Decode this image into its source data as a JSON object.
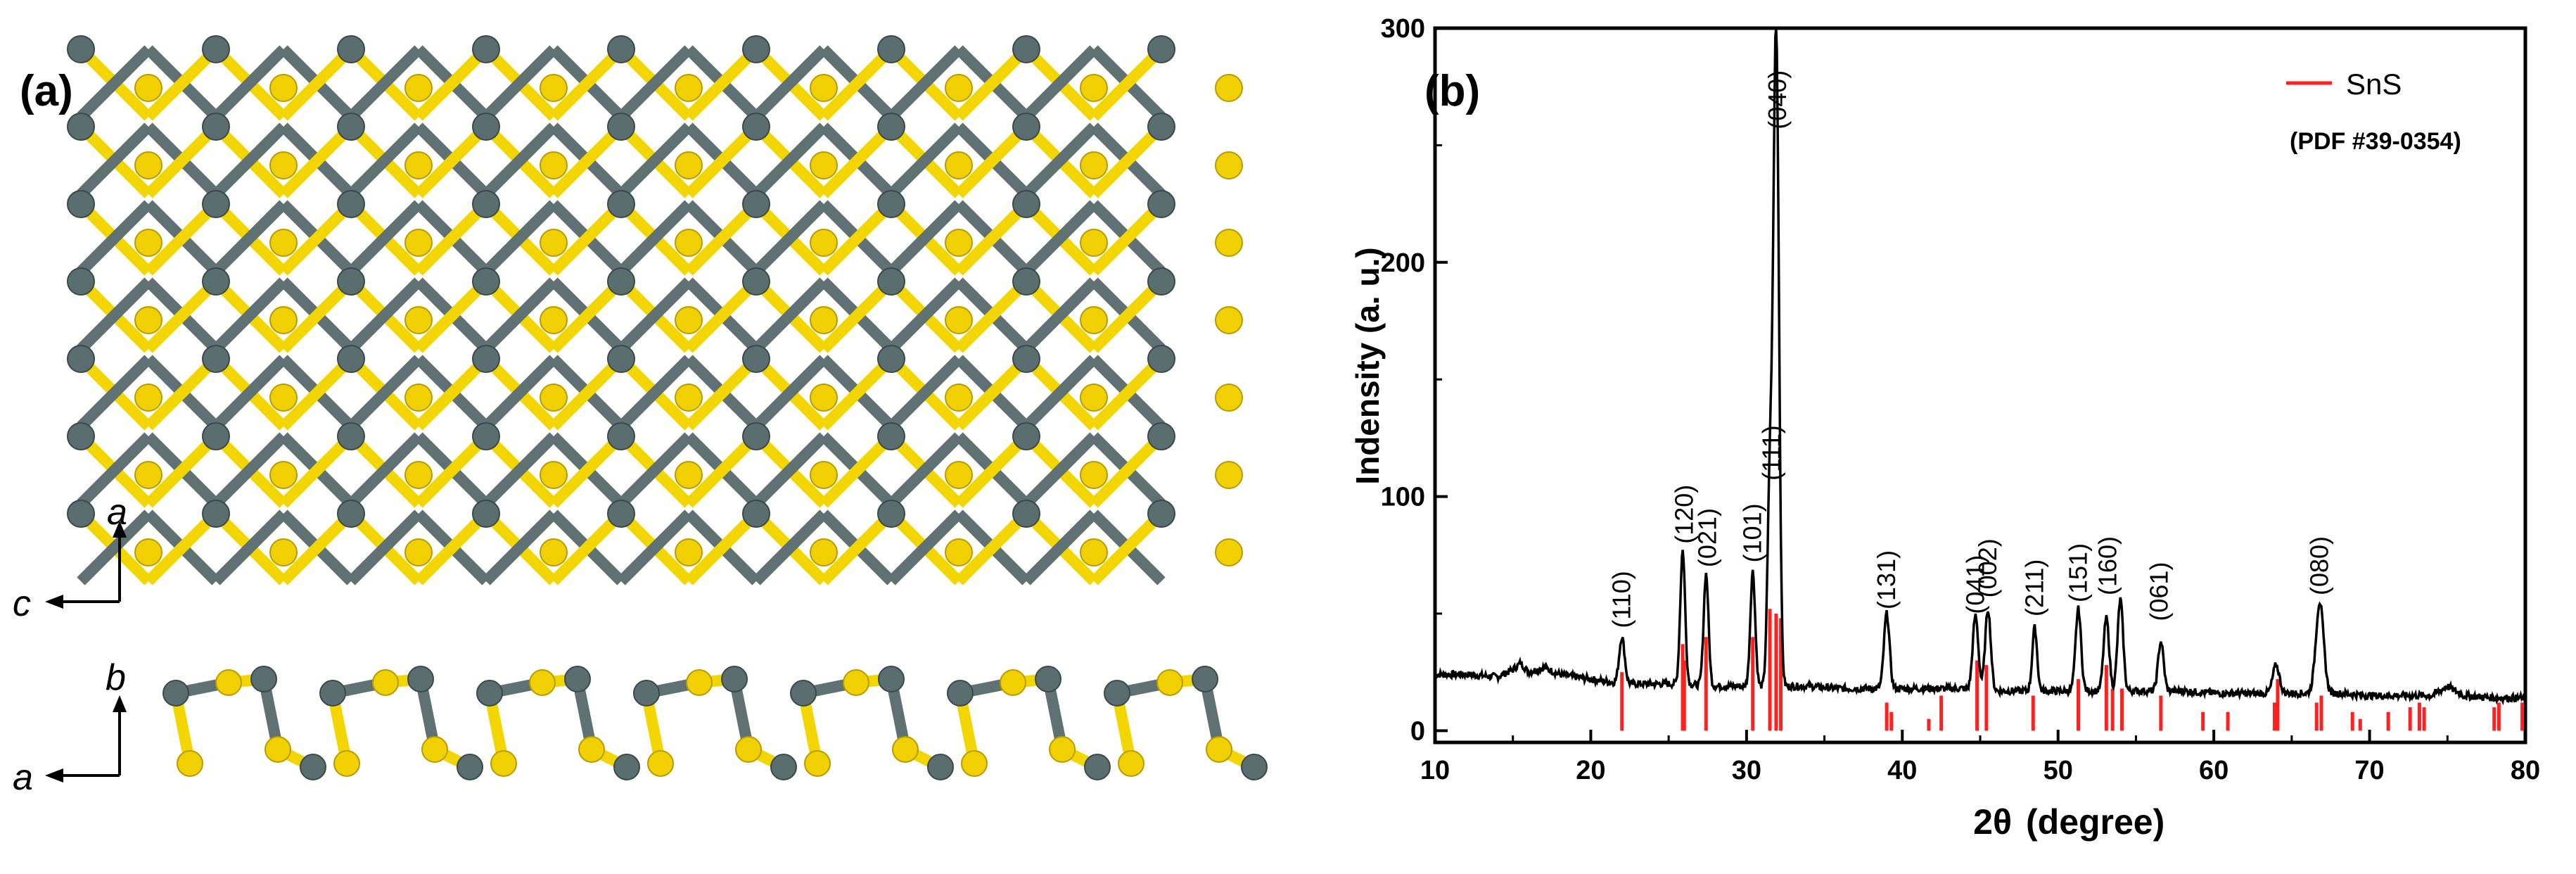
{
  "panel_a": {
    "label": "(a)",
    "top_view_axes": {
      "vertical": "a",
      "horizontal": "c"
    },
    "side_view_axes": {
      "vertical": "b",
      "horizontal": "a"
    },
    "colors": {
      "sn": "#5a6e70",
      "s": "#f0d000",
      "bond_sn": "#5f7173",
      "bond_s": "#f3d500"
    }
  },
  "panel_b": {
    "label": "(b)"
  },
  "chart_data": {
    "type": "line",
    "xlabel_symbol": "2θ",
    "xlabel_unit": "(degree)",
    "ylabel": "Indensity (a. u.)",
    "xlim": [
      10,
      80
    ],
    "ylim": [
      -5,
      300
    ],
    "xticks": [
      10,
      20,
      30,
      40,
      50,
      60,
      70,
      80
    ],
    "yticks": [
      0,
      100,
      200,
      300
    ],
    "legend": {
      "label": "SnS",
      "sublabel": "(PDF #39-0354)",
      "placement": "top-right"
    },
    "colors": {
      "pattern": "#000000",
      "reference": "#ff2020"
    },
    "peak_labels": [
      {
        "text": "(110)",
        "x": 22.0,
        "y": 42
      },
      {
        "text": "(120)",
        "x": 26.0,
        "y": 78
      },
      {
        "text": "(021)",
        "x": 27.5,
        "y": 68
      },
      {
        "text": "(101)",
        "x": 30.4,
        "y": 70
      },
      {
        "text": "(111)",
        "x": 31.6,
        "y": 105
      },
      {
        "text": "(040)",
        "x": 32.0,
        "y": 255
      },
      {
        "text": "(131)",
        "x": 39.0,
        "y": 50
      },
      {
        "text": "(041)",
        "x": 44.7,
        "y": 48
      },
      {
        "text": "(002)",
        "x": 45.5,
        "y": 55
      },
      {
        "text": "(211)",
        "x": 48.5,
        "y": 47
      },
      {
        "text": "(151)",
        "x": 51.3,
        "y": 53
      },
      {
        "text": "(160)",
        "x": 53.2,
        "y": 56
      },
      {
        "text": "(061)",
        "x": 56.5,
        "y": 45
      },
      {
        "text": "(080)",
        "x": 66.8,
        "y": 56
      }
    ],
    "series": [
      {
        "kind": "measured",
        "baseline": [
          [
            10,
            24
          ],
          [
            12,
            24
          ],
          [
            14,
            23
          ],
          [
            15,
            26
          ],
          [
            15.5,
            29
          ],
          [
            16,
            25
          ],
          [
            17,
            27
          ],
          [
            18,
            24
          ],
          [
            20,
            22
          ],
          [
            22,
            20
          ],
          [
            24,
            20
          ],
          [
            26,
            20
          ],
          [
            28,
            19
          ],
          [
            30,
            19
          ],
          [
            32,
            19
          ],
          [
            34,
            19
          ],
          [
            36,
            18
          ],
          [
            38,
            18
          ],
          [
            40,
            18
          ],
          [
            42,
            18
          ],
          [
            44,
            18
          ],
          [
            46,
            17
          ],
          [
            48,
            17
          ],
          [
            50,
            17
          ],
          [
            52,
            17
          ],
          [
            54,
            17
          ],
          [
            56,
            17
          ],
          [
            58,
            17
          ],
          [
            60,
            16
          ],
          [
            62,
            16
          ],
          [
            64,
            16
          ],
          [
            66,
            16
          ],
          [
            68,
            16
          ],
          [
            70,
            15
          ],
          [
            72,
            15
          ],
          [
            74,
            15
          ],
          [
            75,
            19
          ],
          [
            76,
            15
          ],
          [
            78,
            14
          ],
          [
            80,
            14
          ]
        ],
        "peaks": [
          [
            22.0,
            40,
            0.25
          ],
          [
            25.9,
            77,
            0.22
          ],
          [
            27.4,
            67,
            0.22
          ],
          [
            30.4,
            68,
            0.22
          ],
          [
            31.5,
            105,
            0.22
          ],
          [
            31.9,
            300,
            0.25
          ],
          [
            39.0,
            50,
            0.25
          ],
          [
            44.7,
            49,
            0.25
          ],
          [
            45.5,
            52,
            0.25
          ],
          [
            48.5,
            44,
            0.22
          ],
          [
            51.3,
            52,
            0.25
          ],
          [
            53.1,
            48,
            0.25
          ],
          [
            54.0,
            56,
            0.25
          ],
          [
            56.6,
            38,
            0.25
          ],
          [
            64.0,
            28,
            0.3
          ],
          [
            66.8,
            55,
            0.35
          ]
        ]
      },
      {
        "kind": "reference",
        "name": "SnS",
        "sticks": [
          [
            22.0,
            25
          ],
          [
            25.9,
            37
          ],
          [
            26.0,
            30
          ],
          [
            27.4,
            40
          ],
          [
            30.4,
            40
          ],
          [
            31.5,
            52
          ],
          [
            31.9,
            50
          ],
          [
            32.2,
            48
          ],
          [
            39.0,
            12
          ],
          [
            39.3,
            8
          ],
          [
            41.7,
            5
          ],
          [
            42.5,
            15
          ],
          [
            44.8,
            30
          ],
          [
            45.4,
            28
          ],
          [
            48.4,
            15
          ],
          [
            51.3,
            22
          ],
          [
            53.1,
            28
          ],
          [
            53.5,
            18
          ],
          [
            54.1,
            18
          ],
          [
            56.6,
            15
          ],
          [
            59.3,
            8
          ],
          [
            60.9,
            8
          ],
          [
            63.9,
            12
          ],
          [
            64.1,
            22
          ],
          [
            66.6,
            12
          ],
          [
            66.9,
            15
          ],
          [
            68.9,
            8
          ],
          [
            69.4,
            5
          ],
          [
            71.2,
            8
          ],
          [
            72.6,
            10
          ],
          [
            73.2,
            12
          ],
          [
            73.5,
            10
          ],
          [
            78.0,
            10
          ],
          [
            78.3,
            12
          ],
          [
            79.8,
            12
          ]
        ]
      }
    ]
  }
}
